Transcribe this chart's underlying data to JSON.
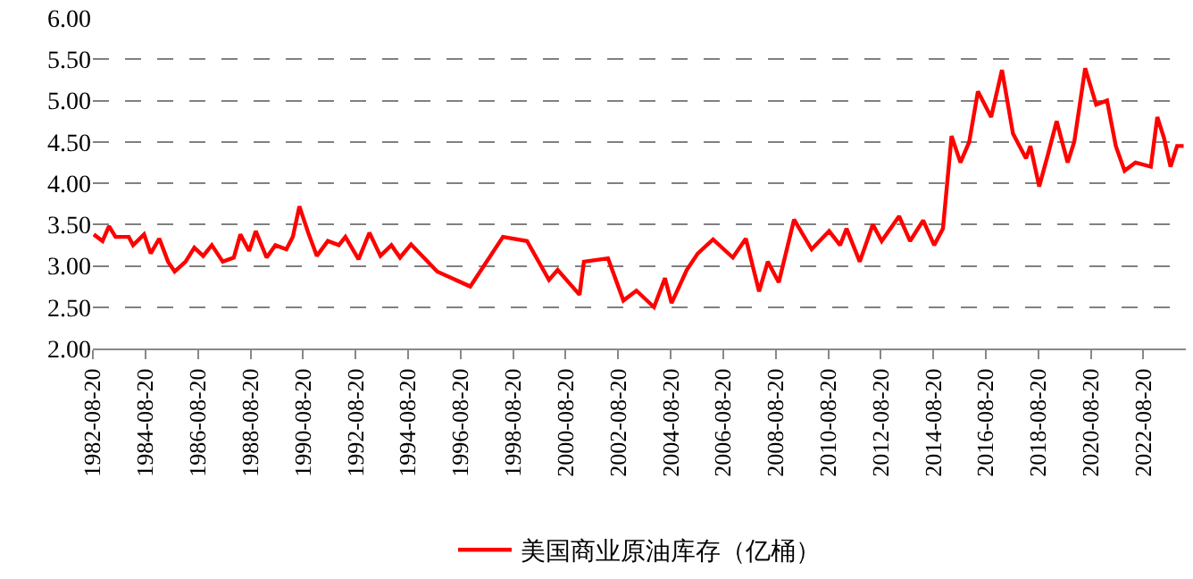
{
  "chart_data": {
    "type": "line",
    "legend": "bottom",
    "grid": "y",
    "line_style": "solid",
    "marker": "none",
    "xlim": [
      "1982-08-20",
      "2024-04-01"
    ],
    "xticks": [
      {
        "value": "1982-08-20",
        "label": "1982-08-20"
      },
      {
        "value": "1984-08-20",
        "label": "1984-08-20"
      },
      {
        "value": "1986-08-20",
        "label": "1986-08-20"
      },
      {
        "value": "1988-08-20",
        "label": "1988-08-20"
      },
      {
        "value": "1990-08-20",
        "label": "1990-08-20"
      },
      {
        "value": "1992-08-20",
        "label": "1992-08-20"
      },
      {
        "value": "1994-08-20",
        "label": "1994-08-20"
      },
      {
        "value": "1996-08-20",
        "label": "1996-08-20"
      },
      {
        "value": "1998-08-20",
        "label": "1998-08-20"
      },
      {
        "value": "2000-08-20",
        "label": "2000-08-20"
      },
      {
        "value": "2002-08-20",
        "label": "2002-08-20"
      },
      {
        "value": "2004-08-20",
        "label": "2004-08-20"
      },
      {
        "value": "2006-08-20",
        "label": "2006-08-20"
      },
      {
        "value": "2008-08-20",
        "label": "2008-08-20"
      },
      {
        "value": "2010-08-20",
        "label": "2010-08-20"
      },
      {
        "value": "2012-08-20",
        "label": "2012-08-20"
      },
      {
        "value": "2014-08-20",
        "label": "2014-08-20"
      },
      {
        "value": "2016-08-20",
        "label": "2016-08-20"
      },
      {
        "value": "2018-08-20",
        "label": "2018-08-20"
      },
      {
        "value": "2020-08-20",
        "label": "2020-08-20"
      },
      {
        "value": "2022-08-20",
        "label": "2022-08-20"
      }
    ],
    "ylim": [
      2,
      6
    ],
    "yticks": [
      {
        "value": 2,
        "label": "2.00"
      },
      {
        "value": 2.5,
        "label": "2.50"
      },
      {
        "value": 3,
        "label": "3.00"
      },
      {
        "value": 3.5,
        "label": "3.50"
      },
      {
        "value": 4,
        "label": "4.00"
      },
      {
        "value": 4.5,
        "label": "4.50"
      },
      {
        "value": 5,
        "label": "5.00"
      },
      {
        "value": 5.5,
        "label": "5.50"
      },
      {
        "value": 6,
        "label": "6.00"
      }
    ],
    "x": [
      "1982-09",
      "1983-01",
      "1983-04",
      "1983-07",
      "1984-01",
      "1984-03",
      "1984-08",
      "1984-11",
      "1985-03",
      "1985-07",
      "1985-10",
      "1986-03",
      "1986-07",
      "1986-11",
      "1987-03",
      "1987-08",
      "1988-01",
      "1988-04",
      "1988-08",
      "1988-11",
      "1989-04",
      "1989-08",
      "1990-01",
      "1990-04",
      "1990-07",
      "1990-11",
      "1991-03",
      "1991-08",
      "1992-01",
      "1992-04",
      "1992-10",
      "1993-03",
      "1993-08",
      "1994-01",
      "1994-05",
      "1994-10",
      "1995-10",
      "1997-01",
      "1998-04",
      "1999-03",
      "2000-01",
      "2000-05",
      "2001-03",
      "2001-05",
      "2002-04",
      "2002-11",
      "2003-05",
      "2004-01",
      "2004-06",
      "2004-09",
      "2005-04",
      "2005-09",
      "2006-04",
      "2007-01",
      "2007-07",
      "2008-01",
      "2008-05",
      "2008-10",
      "2009-05",
      "2010-01",
      "2010-09",
      "2011-02",
      "2011-05",
      "2011-11",
      "2012-05",
      "2012-09",
      "2013-05",
      "2013-10",
      "2014-04",
      "2014-09",
      "2015-01",
      "2015-05",
      "2015-09",
      "2016-01",
      "2016-05",
      "2016-11",
      "2017-04",
      "2017-09",
      "2018-03",
      "2018-05",
      "2018-09",
      "2019-01",
      "2019-05",
      "2019-10",
      "2020-01",
      "2020-06",
      "2020-11",
      "2021-04",
      "2021-08",
      "2021-12",
      "2022-05",
      "2022-12",
      "2023-03",
      "2023-06",
      "2023-09",
      "2023-12",
      "2024-03"
    ],
    "series": [
      {
        "name": "美国商业原油库存（亿桶）",
        "color": "#ff0000",
        "values": [
          3.38,
          3.3,
          3.48,
          3.35,
          3.35,
          3.25,
          3.38,
          3.15,
          3.33,
          3.05,
          2.93,
          3.05,
          3.22,
          3.12,
          3.25,
          3.05,
          3.1,
          3.38,
          3.18,
          3.42,
          3.1,
          3.25,
          3.2,
          3.35,
          3.72,
          3.4,
          3.12,
          3.3,
          3.25,
          3.35,
          3.08,
          3.4,
          3.12,
          3.25,
          3.1,
          3.26,
          2.93,
          2.75,
          3.35,
          3.3,
          2.83,
          2.95,
          2.65,
          3.05,
          3.09,
          2.58,
          2.7,
          2.5,
          2.85,
          2.55,
          2.95,
          3.15,
          3.32,
          3.1,
          3.33,
          2.69,
          3.05,
          2.8,
          3.56,
          3.2,
          3.42,
          3.25,
          3.45,
          3.05,
          3.5,
          3.3,
          3.6,
          3.3,
          3.55,
          3.25,
          3.45,
          4.57,
          4.25,
          4.5,
          5.11,
          4.8,
          5.37,
          4.6,
          4.3,
          4.45,
          3.96,
          4.35,
          4.75,
          4.25,
          4.5,
          5.39,
          4.95,
          5.0,
          4.45,
          4.15,
          4.25,
          4.2,
          4.8,
          4.55,
          4.2,
          4.45,
          4.45
        ]
      }
    ]
  }
}
